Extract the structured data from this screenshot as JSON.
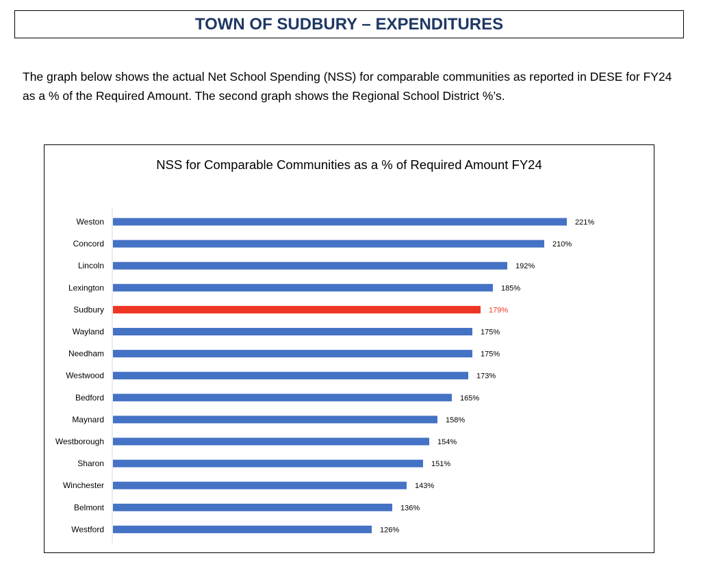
{
  "header": {
    "title": "TOWN OF SUDBURY – EXPENDITURES"
  },
  "intro": {
    "text": "The graph below shows the actual Net School Spending (NSS) for comparable communities as reported in DESE for FY24 as a % of the Required Amount.  The second graph shows the Regional School District %’s."
  },
  "colors": {
    "bar": "#4472c4",
    "highlight": "#ee3524",
    "title": "#1f3864"
  },
  "chart_data": {
    "type": "bar",
    "orientation": "horizontal",
    "title": "NSS for Comparable Communities as a % of Required Amount FY24",
    "xlabel": "",
    "ylabel": "",
    "unit": "%",
    "xlim": [
      0,
      231
    ],
    "grid": false,
    "categories": [
      "Weston",
      "Concord",
      "Lincoln",
      "Lexington",
      "Sudbury",
      "Wayland",
      "Needham",
      "Westwood",
      "Bedford",
      "Maynard",
      "Westborough",
      "Sharon",
      "Winchester",
      "Belmont",
      "Westford"
    ],
    "values": [
      221,
      210,
      192,
      185,
      179,
      175,
      175,
      173,
      165,
      158,
      154,
      151,
      143,
      136,
      126
    ],
    "data_labels": [
      "221%",
      "210%",
      "192%",
      "185%",
      "179%",
      "175%",
      "175%",
      "173%",
      "165%",
      "158%",
      "154%",
      "151%",
      "143%",
      "136%",
      "126%"
    ],
    "highlight_category": "Sudbury"
  }
}
